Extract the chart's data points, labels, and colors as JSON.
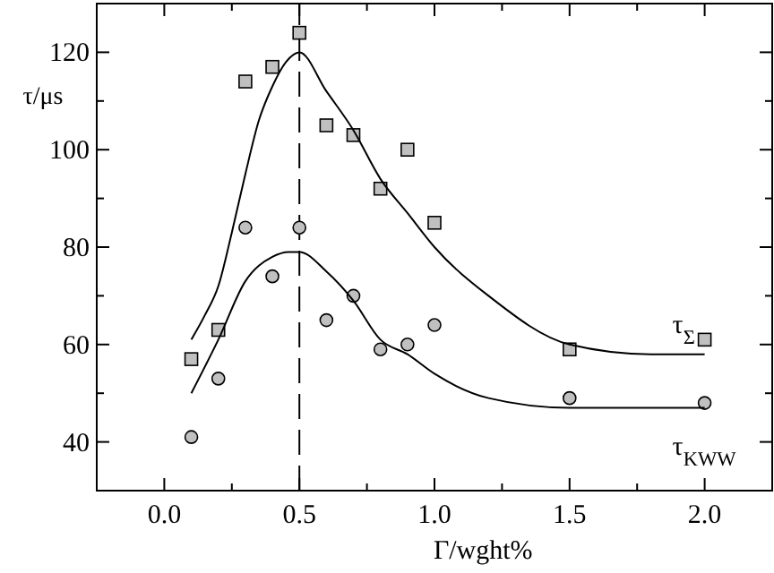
{
  "chart_data": {
    "type": "scatter",
    "xlabel": "Γ/wght%",
    "ylabel": "τ/μs",
    "xlim": [
      -0.25,
      2.25
    ],
    "ylim": [
      30,
      130
    ],
    "xticks": [
      {
        "value": -0.25,
        "label": null
      },
      {
        "value": 0,
        "label": "0.0"
      },
      {
        "value": 0.25,
        "label": null
      },
      {
        "value": 0.5,
        "label": "0.5"
      },
      {
        "value": 0.75,
        "label": null
      },
      {
        "value": 1,
        "label": "1.0"
      },
      {
        "value": 1.25,
        "label": null
      },
      {
        "value": 1.5,
        "label": "1.5"
      },
      {
        "value": 1.75,
        "label": null
      },
      {
        "value": 2,
        "label": "2.0"
      }
    ],
    "yticks": [
      {
        "value": 30,
        "label": null
      },
      40,
      {
        "value": 50,
        "label": null
      },
      60,
      {
        "value": 70,
        "label": null
      },
      80,
      {
        "value": 90,
        "label": null
      },
      100,
      {
        "value": 110,
        "label": null
      },
      120
    ],
    "grid": false,
    "legend": "right",
    "ref_lines": [
      {
        "axis": "x",
        "value": 0.5,
        "line_style": "dashed",
        "color": "#000000"
      }
    ],
    "series": [
      {
        "marker": "square",
        "color": "#c0c0c0",
        "x": [
          0.1,
          0.2,
          0.3,
          0.4,
          0.5,
          0.6,
          0.7,
          0.8,
          0.9,
          1.0,
          1.5,
          2.0
        ],
        "values": [
          57,
          63,
          114,
          117,
          124,
          105,
          103,
          92,
          100,
          85,
          59,
          61
        ]
      },
      {
        "marker": "circle",
        "color": "#c0c0c0",
        "x": [
          0.1,
          0.2,
          0.3,
          0.4,
          0.5,
          0.6,
          0.7,
          0.8,
          0.9,
          1.0,
          1.5,
          2.0
        ],
        "values": [
          41,
          53,
          84,
          74,
          84,
          65,
          70,
          59,
          60,
          64,
          49,
          48
        ]
      },
      {
        "type": "line",
        "name": "τ$_{Σ}$",
        "marker": "none",
        "line_style": "solid",
        "color": "#000000",
        "x": [
          0.1,
          0.15,
          0.2,
          0.25,
          0.3,
          0.35,
          0.4,
          0.45,
          0.5,
          0.6,
          0.7,
          0.8,
          0.9,
          1.0,
          1.2,
          1.5,
          1.8,
          2.0
        ],
        "values": [
          61,
          66,
          72,
          83,
          95,
          106,
          113,
          118,
          120,
          112,
          104,
          94,
          87,
          80,
          70,
          60,
          58,
          58
        ]
      },
      {
        "type": "line",
        "name": "τ$_{KWW}$",
        "marker": "none",
        "line_style": "solid",
        "color": "#000000",
        "x": [
          0.1,
          0.2,
          0.3,
          0.4,
          0.46,
          0.5,
          0.6,
          0.7,
          0.8,
          0.9,
          1.0,
          1.2,
          1.5,
          2.0
        ],
        "values": [
          50,
          61,
          73,
          78,
          79,
          79,
          75,
          69,
          61,
          58,
          54,
          49,
          47,
          47
        ]
      }
    ]
  }
}
